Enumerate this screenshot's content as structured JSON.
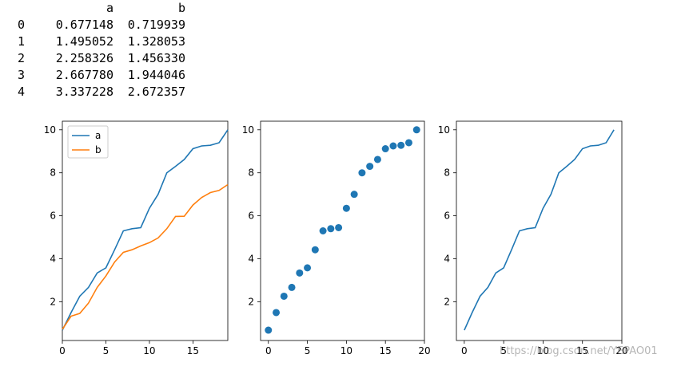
{
  "dataframe": {
    "columns": [
      "a",
      "b"
    ],
    "rows": [
      {
        "index": "0",
        "a": "0.677148",
        "b": "0.719939"
      },
      {
        "index": "1",
        "a": "1.495052",
        "b": "1.328053"
      },
      {
        "index": "2",
        "a": "2.258326",
        "b": "1.456330"
      },
      {
        "index": "3",
        "a": "2.667780",
        "b": "1.944046"
      },
      {
        "index": "4",
        "a": "3.337228",
        "b": "2.672357"
      }
    ]
  },
  "colors": {
    "series_a": "#1f77b4",
    "series_b": "#ff7f0e"
  },
  "watermark": "https://blog.csdn.net/YEPAO01",
  "chart_data": [
    {
      "type": "line",
      "x": [
        0,
        1,
        2,
        3,
        4,
        5,
        6,
        7,
        8,
        9,
        10,
        11,
        12,
        13,
        14,
        15,
        16,
        17,
        18,
        19
      ],
      "series": [
        {
          "name": "a",
          "values": [
            0.68,
            1.5,
            2.26,
            2.67,
            3.34,
            3.58,
            4.42,
            5.3,
            5.4,
            5.45,
            6.35,
            7.0,
            8.0,
            8.3,
            8.62,
            9.12,
            9.25,
            9.28,
            9.4,
            10.0
          ]
        },
        {
          "name": "b",
          "values": [
            0.72,
            1.33,
            1.46,
            1.94,
            2.67,
            3.2,
            3.85,
            4.3,
            4.42,
            4.6,
            4.75,
            4.97,
            5.4,
            5.97,
            5.98,
            6.5,
            6.85,
            7.08,
            7.18,
            7.45
          ]
        }
      ],
      "xlim": [
        0,
        19
      ],
      "ylim": [
        0.2,
        10.4
      ],
      "xticks": [
        "0",
        "5",
        "10",
        "15"
      ],
      "xtick_values": [
        0,
        5,
        10,
        15
      ],
      "yticks": [
        "2",
        "4",
        "6",
        "8",
        "10"
      ],
      "ytick_values": [
        2,
        4,
        6,
        8,
        10
      ],
      "legend": "upper-left",
      "grid": false
    },
    {
      "type": "scatter",
      "x": [
        0,
        1,
        2,
        3,
        4,
        5,
        6,
        7,
        8,
        9,
        10,
        11,
        12,
        13,
        14,
        15,
        16,
        17,
        18,
        19
      ],
      "y": [
        0.68,
        1.5,
        2.26,
        2.67,
        3.34,
        3.58,
        4.42,
        5.3,
        5.4,
        5.45,
        6.35,
        7.0,
        8.0,
        8.3,
        8.62,
        9.12,
        9.25,
        9.28,
        9.4,
        10.0
      ],
      "xlim": [
        -1,
        20
      ],
      "ylim": [
        0.2,
        10.4
      ],
      "xticks": [
        "0",
        "5",
        "10",
        "15",
        "20"
      ],
      "xtick_values": [
        0,
        5,
        10,
        15,
        20
      ],
      "yticks": [
        "2",
        "4",
        "6",
        "8",
        "10"
      ],
      "ytick_values": [
        2,
        4,
        6,
        8,
        10
      ],
      "grid": false
    },
    {
      "type": "line",
      "x": [
        0,
        1,
        2,
        3,
        4,
        5,
        6,
        7,
        8,
        9,
        10,
        11,
        12,
        13,
        14,
        15,
        16,
        17,
        18,
        19
      ],
      "y": [
        0.68,
        1.5,
        2.26,
        2.67,
        3.34,
        3.58,
        4.42,
        5.3,
        5.4,
        5.45,
        6.35,
        7.0,
        8.0,
        8.3,
        8.62,
        9.12,
        9.25,
        9.28,
        9.4,
        10.0
      ],
      "xlim": [
        -1,
        20
      ],
      "ylim": [
        0.2,
        10.4
      ],
      "xticks": [
        "0",
        "5",
        "10",
        "15",
        "20"
      ],
      "xtick_values": [
        0,
        5,
        10,
        15,
        20
      ],
      "yticks": [
        "2",
        "4",
        "6",
        "8",
        "10"
      ],
      "ytick_values": [
        2,
        4,
        6,
        8,
        10
      ],
      "grid": false
    }
  ]
}
